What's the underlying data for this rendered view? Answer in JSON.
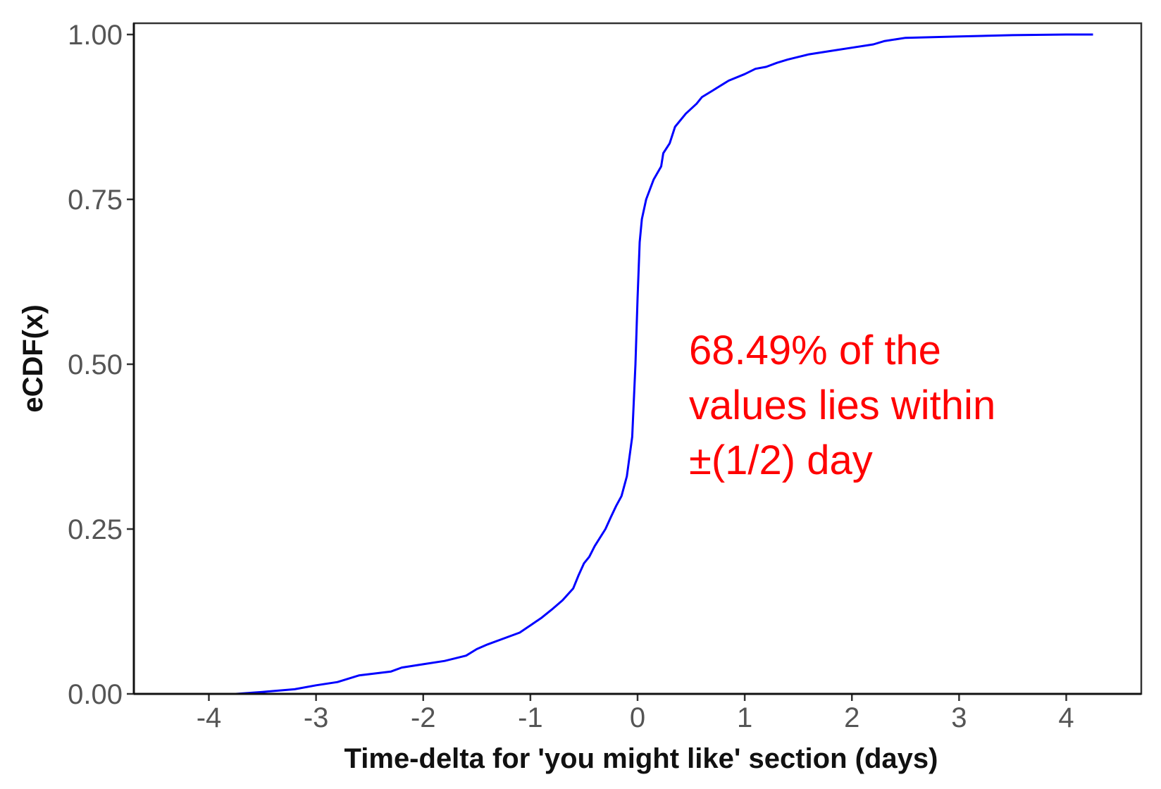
{
  "chart_data": {
    "type": "line",
    "title": "",
    "xlabel": "Time-delta for 'you might like' section (days)",
    "ylabel": "eCDF(x)",
    "xlim": [
      -4.7,
      4.7
    ],
    "ylim": [
      0,
      1
    ],
    "xticks": [
      -4,
      -3,
      -2,
      -1,
      0,
      1,
      2,
      3,
      4
    ],
    "xtick_labels": [
      "-4",
      "-3",
      "-2",
      "-1",
      "0",
      "1",
      "2",
      "3",
      "4"
    ],
    "yticks": [
      0,
      0.25,
      0.5,
      0.75,
      1.0
    ],
    "ytick_labels": [
      "0.00",
      "0.25",
      "0.50",
      "0.75",
      "1.00"
    ],
    "grid": false,
    "line_color": "#0000ff",
    "series": [
      {
        "x": [
          -3.75,
          -3.5,
          -3.2,
          -3.0,
          -2.8,
          -2.6,
          -2.3,
          -2.2,
          -2.0,
          -1.8,
          -1.6,
          -1.5,
          -1.4,
          -1.2,
          -1.1,
          -1.0,
          -0.9,
          -0.8,
          -0.7,
          -0.6,
          -0.55,
          -0.5,
          -0.45,
          -0.4,
          -0.3,
          -0.25,
          -0.2,
          -0.15,
          -0.1,
          -0.05,
          -0.02,
          0.0,
          0.02,
          0.04,
          0.08,
          0.15,
          0.22,
          0.24,
          0.3,
          0.35,
          0.45,
          0.55,
          0.6,
          0.7,
          0.75,
          0.8,
          0.85,
          1.0,
          1.1,
          1.2,
          1.3,
          1.4,
          1.5,
          1.6,
          1.8,
          2.0,
          2.2,
          2.3,
          2.5,
          3.0,
          3.5,
          4.0,
          4.25
        ],
        "y": [
          0.0,
          0.003,
          0.007,
          0.013,
          0.018,
          0.028,
          0.034,
          0.04,
          0.045,
          0.05,
          0.058,
          0.068,
          0.075,
          0.087,
          0.093,
          0.104,
          0.115,
          0.128,
          0.142,
          0.16,
          0.18,
          0.198,
          0.208,
          0.224,
          0.25,
          0.268,
          0.285,
          0.3,
          0.33,
          0.39,
          0.5,
          0.6,
          0.685,
          0.72,
          0.75,
          0.78,
          0.8,
          0.82,
          0.835,
          0.86,
          0.88,
          0.895,
          0.905,
          0.915,
          0.92,
          0.925,
          0.93,
          0.94,
          0.948,
          0.951,
          0.957,
          0.962,
          0.966,
          0.97,
          0.975,
          0.98,
          0.985,
          0.99,
          0.995,
          0.997,
          0.999,
          1.0,
          1.0
        ]
      }
    ],
    "annotation": {
      "lines": [
        "68.49% of the",
        "values lies within",
        "±(1/2) day"
      ],
      "color": "#ff0000"
    }
  }
}
